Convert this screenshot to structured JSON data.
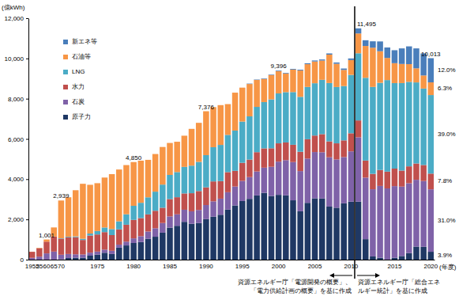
{
  "chart_data": {
    "type": "bar",
    "stacked": true,
    "grid": false,
    "legend": "upper left",
    "ylabel": "(億kWh)",
    "xlabel": "(年度)",
    "ylim": [
      0,
      12000
    ],
    "yticks": [
      0,
      {
        "value": 2000,
        "label": "2,000"
      },
      {
        "value": 4000,
        "label": "4,000"
      },
      {
        "value": 6000,
        "label": "6,000"
      },
      {
        "value": 8000,
        "label": "8,000"
      },
      {
        "value": 10000,
        "label": "10,000"
      },
      {
        "value": 12000,
        "label": "12,000"
      }
    ],
    "categories": [
      "1952",
      "55",
      "60",
      "65",
      "70",
      null,
      null,
      null,
      null,
      "1975",
      null,
      null,
      null,
      null,
      "1980",
      null,
      null,
      null,
      null,
      "1985",
      null,
      null,
      null,
      null,
      "1990",
      null,
      null,
      null,
      null,
      "1995",
      null,
      null,
      null,
      null,
      "2000",
      null,
      null,
      null,
      null,
      "2005",
      null,
      null,
      null,
      null,
      "2010",
      null,
      null,
      null,
      null,
      null,
      "2015",
      null,
      null,
      null,
      null,
      "2020"
    ],
    "series": [
      {
        "name": "原子力",
        "color": "#1f3864",
        "share": 3.9,
        "share_label": "3.9%",
        "values": [
          0,
          0,
          0,
          0,
          13,
          80,
          95,
          97,
          197,
          251,
          343,
          280,
          595,
          705,
          826,
          876,
          1038,
          1139,
          1340,
          1590,
          1683,
          1880,
          1782,
          1820,
          2014,
          2138,
          2232,
          2490,
          2694,
          2913,
          3022,
          3192,
          3321,
          3165,
          3221,
          3195,
          2949,
          2402,
          2824,
          3048,
          3038,
          2638,
          2581,
          2798,
          2882,
          2882,
          1018,
          159,
          93,
          0,
          94,
          181,
          329,
          649,
          638,
          391
        ]
      },
      {
        "name": "石炭",
        "color": "#7f62a8",
        "share": 31.0,
        "share_label": "31.0%",
        "values": [
          90,
          150,
          310,
          400,
          230,
          200,
          170,
          160,
          150,
          150,
          155,
          160,
          150,
          190,
          230,
          290,
          360,
          420,
          480,
          560,
          570,
          600,
          620,
          650,
          700,
          760,
          800,
          860,
          940,
          1000,
          1080,
          1190,
          1250,
          1450,
          1650,
          1750,
          1900,
          2000,
          2200,
          2300,
          2300,
          2450,
          2400,
          2300,
          2500,
          3199,
          3058,
          3340,
          3570,
          3540,
          3560,
          3450,
          3470,
          3320,
          3270,
          3104
        ]
      },
      {
        "name": "水力",
        "color": "#c0504d",
        "share": 7.8,
        "share_label": "7.8%",
        "values": [
          300,
          420,
          585,
          750,
          800,
          830,
          850,
          720,
          850,
          850,
          870,
          780,
          760,
          840,
          920,
          900,
          850,
          870,
          760,
          860,
          850,
          810,
          900,
          940,
          880,
          990,
          870,
          1000,
          780,
          900,
          870,
          960,
          960,
          920,
          910,
          880,
          860,
          960,
          960,
          820,
          900,
          790,
          800,
          830,
          900,
          838,
          849,
          765,
          794,
          835,
          871,
          795,
          838,
          810,
          796,
          781
        ]
      },
      {
        "name": "LNG",
        "color": "#4bacc6",
        "share": 39.0,
        "share_label": "39.0%",
        "values": [
          0,
          0,
          0,
          0,
          20,
          30,
          40,
          60,
          100,
          170,
          230,
          300,
          400,
          520,
          700,
          760,
          850,
          950,
          1150,
          1200,
          1250,
          1320,
          1370,
          1450,
          1600,
          1700,
          1800,
          1850,
          2000,
          2050,
          2150,
          2250,
          2300,
          2430,
          2480,
          2500,
          2620,
          2730,
          2600,
          2600,
          2700,
          2900,
          2800,
          2700,
          2900,
          3339,
          4113,
          4320,
          4332,
          4550,
          4250,
          4350,
          4200,
          4030,
          3800,
          3905
        ]
      },
      {
        "name": "石油等",
        "color": "#f79646",
        "share": 6.3,
        "share_label": "6.3%",
        "values": [
          5,
          20,
          106,
          450,
          1876,
          1960,
          2295,
          2733,
          2423,
          2379,
          2482,
          2730,
          2575,
          2445,
          2174,
          2094,
          1862,
          1871,
          1870,
          1590,
          1507,
          1550,
          1828,
          1940,
          2182,
          1992,
          1978,
          1530,
          1886,
          1687,
          1608,
          1338,
          1154,
          1210,
          1105,
          925,
          1116,
          1308,
          1131,
          1082,
          957,
          1412,
          1154,
          802,
          738,
          983,
          1583,
          1950,
          1570,
          1100,
          990,
          950,
          880,
          700,
          650,
          631
        ]
      },
      {
        "name": "新エネ等",
        "color": "#4a7ebb",
        "share": 12.0,
        "share_label": "12.0%",
        "values": [
          0,
          0,
          0,
          0,
          0,
          0,
          0,
          0,
          0,
          0,
          0,
          0,
          0,
          0,
          0,
          0,
          0,
          0,
          0,
          0,
          0,
          0,
          0,
          0,
          0,
          0,
          0,
          0,
          0,
          0,
          20,
          20,
          25,
          25,
          30,
          30,
          35,
          40,
          45,
          50,
          55,
          60,
          65,
          70,
          80,
          254,
          283,
          318,
          486,
          520,
          644,
          774,
          883,
          991,
          1096,
          1201
        ]
      }
    ],
    "totals": {
      "values": [
        null,
        null,
        1001,
        null,
        2939,
        null,
        null,
        null,
        null,
        null,
        null,
        null,
        null,
        null,
        4850,
        null,
        null,
        null,
        null,
        null,
        null,
        null,
        null,
        null,
        7376,
        null,
        null,
        null,
        null,
        null,
        null,
        null,
        null,
        null,
        9396,
        null,
        null,
        null,
        null,
        null,
        null,
        null,
        null,
        null,
        null,
        11495,
        null,
        null,
        null,
        null,
        null,
        null,
        null,
        null,
        null,
        10013
      ],
      "value_labels": [
        null,
        null,
        "1,001",
        null,
        "2,939",
        null,
        null,
        null,
        null,
        null,
        null,
        null,
        null,
        null,
        "4,850",
        null,
        null,
        null,
        null,
        null,
        null,
        null,
        null,
        null,
        "7,376",
        null,
        null,
        null,
        null,
        null,
        null,
        null,
        null,
        null,
        "9,396",
        null,
        null,
        null,
        null,
        null,
        null,
        null,
        null,
        null,
        null,
        "11,495",
        null,
        null,
        null,
        null,
        null,
        null,
        null,
        null,
        null,
        "10,013"
      ]
    },
    "notes": [
      {
        "lines": [
          "資源エネルギー庁「電源開発の概要」、",
          "「電力供給計画の概要」を基に作成"
        ]
      },
      {
        "lines": [
          "資源エネルギー庁「総合エネ",
          "ルギー統計」を基に作成"
        ]
      }
    ]
  }
}
